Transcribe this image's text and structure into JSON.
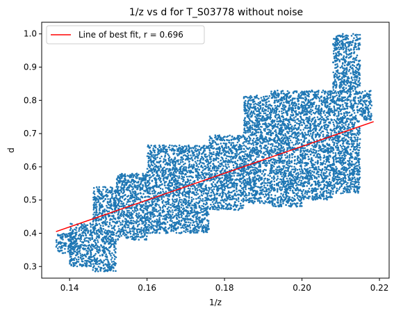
{
  "chart_data": {
    "type": "scatter",
    "title": "1/z vs d for T_S03778 without noise",
    "xlabel": "1/z",
    "ylabel": "d",
    "xlim": [
      0.1328,
      0.2225
    ],
    "ylim": [
      0.265,
      1.035
    ],
    "xticks": [
      "0.14",
      "0.16",
      "0.18",
      "0.20",
      "0.22"
    ],
    "xtick_values": [
      0.14,
      0.16,
      0.18,
      0.2,
      0.22
    ],
    "yticks": [
      "0.3",
      "0.4",
      "0.5",
      "0.6",
      "0.7",
      "0.8",
      "0.9",
      "1.0"
    ],
    "ytick_values": [
      0.3,
      0.4,
      0.5,
      0.6,
      0.7,
      0.8,
      0.9,
      1.0
    ],
    "grid": false,
    "legend_position": "top-left",
    "scatter_color": "#1f77b4",
    "fit_color": "#ff0000",
    "series": [
      {
        "name": "",
        "kind": "scatter-cloud",
        "description_regions": [
          {
            "x": [
              0.1365,
              0.142
            ],
            "y": [
              0.34,
              0.4
            ]
          },
          {
            "x": [
              0.14,
              0.146
            ],
            "y": [
              0.3,
              0.43
            ]
          },
          {
            "x": [
              0.146,
              0.152
            ],
            "y": [
              0.285,
              0.54
            ]
          },
          {
            "x": [
              0.152,
              0.16
            ],
            "y": [
              0.38,
              0.58
            ]
          },
          {
            "x": [
              0.16,
              0.168
            ],
            "y": [
              0.4,
              0.665
            ]
          },
          {
            "x": [
              0.168,
              0.176
            ],
            "y": [
              0.4,
              0.665
            ]
          },
          {
            "x": [
              0.176,
              0.185
            ],
            "y": [
              0.47,
              0.695
            ]
          },
          {
            "x": [
              0.185,
              0.192
            ],
            "y": [
              0.49,
              0.815
            ]
          },
          {
            "x": [
              0.192,
              0.2
            ],
            "y": [
              0.48,
              0.83
            ]
          },
          {
            "x": [
              0.2,
              0.208
            ],
            "y": [
              0.5,
              0.83
            ]
          },
          {
            "x": [
              0.208,
              0.215
            ],
            "y": [
              0.52,
              1.0
            ]
          },
          {
            "x": [
              0.215,
              0.218
            ],
            "y": [
              0.74,
              0.83
            ]
          }
        ]
      },
      {
        "name": "Line of best fit, r = 0.696",
        "kind": "line",
        "x": [
          0.1365,
          0.2185
        ],
        "y": [
          0.405,
          0.736
        ]
      }
    ]
  }
}
